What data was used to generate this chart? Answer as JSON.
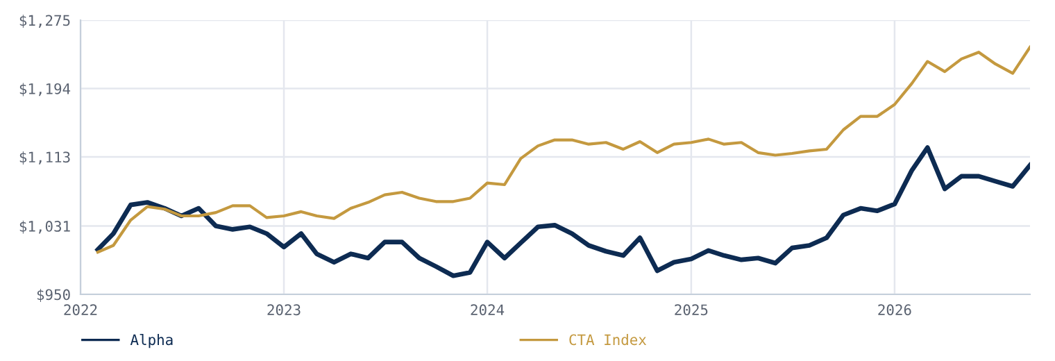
{
  "chart_data": {
    "type": "line",
    "x": [
      "2022-02",
      "2022-03",
      "2022-04",
      "2022-05",
      "2022-06",
      "2022-07",
      "2022-08",
      "2022-09",
      "2022-10",
      "2022-11",
      "2022-12",
      "2023-01",
      "2023-02",
      "2023-03",
      "2023-04",
      "2023-05",
      "2023-06",
      "2023-07",
      "2023-08",
      "2023-09",
      "2023-10",
      "2023-11",
      "2023-12",
      "2024-01",
      "2024-02",
      "2024-03",
      "2024-04",
      "2024-05",
      "2024-06",
      "2024-07",
      "2024-08",
      "2024-09",
      "2024-10",
      "2024-11",
      "2024-12",
      "2025-01",
      "2025-02",
      "2025-03",
      "2025-04",
      "2025-05",
      "2025-06",
      "2025-07",
      "2025-08",
      "2025-09",
      "2025-10",
      "2025-11",
      "2025-12",
      "2026-01",
      "2026-02",
      "2026-03",
      "2026-04",
      "2026-05",
      "2026-06",
      "2026-07",
      "2026-08",
      "2026-09"
    ],
    "series": [
      {
        "name": "Alpha",
        "color": "#0d2b52",
        "values": [
          1003,
          1022,
          1056,
          1059,
          1052,
          1043,
          1052,
          1031,
          1027,
          1030,
          1022,
          1006,
          1022,
          998,
          988,
          998,
          993,
          1012,
          1012,
          993,
          983,
          972,
          976,
          1012,
          993,
          1011,
          1030,
          1032,
          1022,
          1008,
          1001,
          996,
          1017,
          978,
          988,
          992,
          1002,
          996,
          991,
          993,
          987,
          1005,
          1008,
          1017,
          1044,
          1052,
          1049,
          1057,
          1097,
          1124,
          1075,
          1090,
          1090,
          1084,
          1078,
          1103
        ]
      },
      {
        "name": "CTA Index",
        "color": "#c4993f",
        "values": [
          1000,
          1008,
          1038,
          1054,
          1051,
          1043,
          1043,
          1047,
          1055,
          1055,
          1041,
          1043,
          1048,
          1043,
          1040,
          1052,
          1059,
          1068,
          1071,
          1064,
          1060,
          1060,
          1064,
          1082,
          1080,
          1111,
          1126,
          1133,
          1133,
          1128,
          1130,
          1122,
          1131,
          1118,
          1128,
          1130,
          1134,
          1128,
          1130,
          1118,
          1115,
          1117,
          1120,
          1122,
          1145,
          1161,
          1161,
          1175,
          1200,
          1226,
          1214,
          1229,
          1237,
          1223,
          1212,
          1243
        ]
      }
    ],
    "xlim": [
      "2022-01",
      "2026-09"
    ],
    "xticks": [
      {
        "value": "2022-01-01",
        "label": "2022"
      },
      {
        "value": "2023-01-01",
        "label": "2023"
      },
      {
        "value": "2024-01-01",
        "label": "2024"
      },
      {
        "value": "2025-01-01",
        "label": "2025"
      },
      {
        "value": "2026-01-01",
        "label": "2026"
      }
    ],
    "ylim": [
      950,
      1275
    ],
    "yticks": [
      {
        "value": 950,
        "label": "$950"
      },
      {
        "value": 1031,
        "label": "$1,031"
      },
      {
        "value": 1113,
        "label": "$1,113"
      },
      {
        "value": 1194,
        "label": "$1,194"
      },
      {
        "value": 1275,
        "label": "$1,275"
      }
    ],
    "grid": true,
    "legend": "bottom",
    "marker": "none",
    "line_style": "solid"
  }
}
